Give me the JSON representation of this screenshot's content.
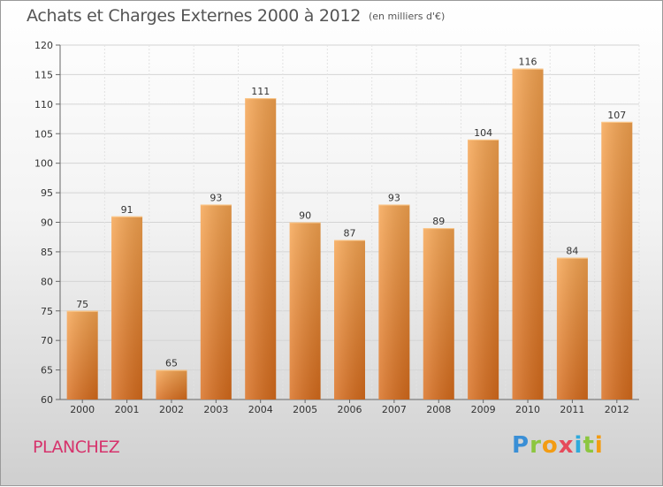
{
  "chart_data": {
    "type": "bar",
    "title": "Achats et Charges Externes 2000 à 2012",
    "unit_note": "(en milliers d'€)",
    "categories": [
      "2000",
      "2001",
      "2002",
      "2003",
      "2004",
      "2005",
      "2006",
      "2007",
      "2008",
      "2009",
      "2010",
      "2011",
      "2012"
    ],
    "values": [
      75,
      91,
      65,
      93,
      111,
      90,
      87,
      93,
      89,
      104,
      116,
      84,
      107
    ],
    "ylim": [
      60,
      120
    ],
    "yticks": [
      60,
      65,
      70,
      75,
      80,
      85,
      90,
      95,
      100,
      105,
      110,
      115,
      120
    ],
    "grid": true,
    "legend": "none",
    "bar_color": "#f0913a"
  },
  "footer": {
    "commune": "PLANCHEZ",
    "logo": [
      "P",
      "r",
      "o",
      "x",
      "i",
      "t",
      "i"
    ]
  }
}
